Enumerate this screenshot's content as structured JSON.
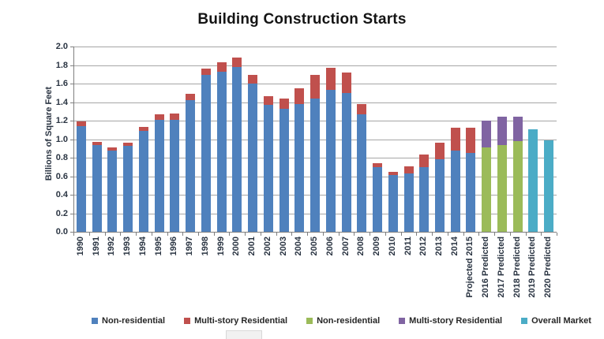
{
  "chart_data": {
    "type": "bar",
    "stacked": true,
    "title": "Building Construction Starts",
    "ylabel": "Billions of Square Feet",
    "ylim": [
      0,
      2.0
    ],
    "yticks": [
      "0.0",
      "0.2",
      "0.4",
      "0.6",
      "0.8",
      "1.0",
      "1.2",
      "1.4",
      "1.6",
      "1.8",
      "2.0"
    ],
    "grid": true,
    "legend_position": "bottom",
    "categories": [
      "1990",
      "1991",
      "1992",
      "1993",
      "1994",
      "1995",
      "1996",
      "1997",
      "1998",
      "1999",
      "2000",
      "2001",
      "2002",
      "2003",
      "2004",
      "2005",
      "2006",
      "2007",
      "2008",
      "2009",
      "2010",
      "2011",
      "2012",
      "2013",
      "2014",
      "Projected 2015",
      "2016 Predicted",
      "2017 Predicted",
      "2018 Predicted",
      "2019 Predicted",
      "2020 Predicted"
    ],
    "series": [
      {
        "name": "Non-residential",
        "color": "#4F81BD",
        "values": [
          1.14,
          0.94,
          0.88,
          0.93,
          1.09,
          1.21,
          1.21,
          1.42,
          1.69,
          1.73,
          1.78,
          1.6,
          1.37,
          1.33,
          1.38,
          1.44,
          1.53,
          1.5,
          1.27,
          0.7,
          0.61,
          0.63,
          0.7,
          0.78,
          0.88,
          0.85,
          0,
          0,
          0,
          0,
          0
        ]
      },
      {
        "name": "Multi-story Residential",
        "color": "#C0504D",
        "values": [
          0.05,
          0.03,
          0.03,
          0.03,
          0.04,
          0.06,
          0.07,
          0.07,
          0.07,
          0.1,
          0.1,
          0.09,
          0.09,
          0.11,
          0.17,
          0.25,
          0.24,
          0.22,
          0.11,
          0.04,
          0.04,
          0.08,
          0.13,
          0.18,
          0.24,
          0.27,
          0,
          0,
          0,
          0,
          0
        ]
      },
      {
        "name": "Non-residential",
        "color": "#9BBB59",
        "values": [
          0,
          0,
          0,
          0,
          0,
          0,
          0,
          0,
          0,
          0,
          0,
          0,
          0,
          0,
          0,
          0,
          0,
          0,
          0,
          0,
          0,
          0,
          0,
          0,
          0,
          0,
          0.91,
          0.94,
          0.98,
          0,
          0
        ]
      },
      {
        "name": "Multi-story Residential",
        "color": "#8064A2",
        "values": [
          0,
          0,
          0,
          0,
          0,
          0,
          0,
          0,
          0,
          0,
          0,
          0,
          0,
          0,
          0,
          0,
          0,
          0,
          0,
          0,
          0,
          0,
          0,
          0,
          0,
          0,
          0.29,
          0.3,
          0.26,
          0,
          0
        ]
      },
      {
        "name": "Overall Market",
        "color": "#4BACC6",
        "values": [
          0,
          0,
          0,
          0,
          0,
          0,
          0,
          0,
          0,
          0,
          0,
          0,
          0,
          0,
          0,
          0,
          0,
          0,
          0,
          0,
          0,
          0,
          0,
          0,
          0,
          0,
          0,
          0,
          0,
          1.11,
          0.99
        ]
      }
    ],
    "legend": [
      {
        "label": "Non-residential",
        "color": "#4F81BD"
      },
      {
        "label": "Multi-story Residential",
        "color": "#C0504D"
      },
      {
        "label": "Non-residential",
        "color": "#9BBB59"
      },
      {
        "label": "Multi-story Residential",
        "color": "#8064A2"
      },
      {
        "label": "Overall Market",
        "color": "#4BACC6"
      }
    ]
  }
}
